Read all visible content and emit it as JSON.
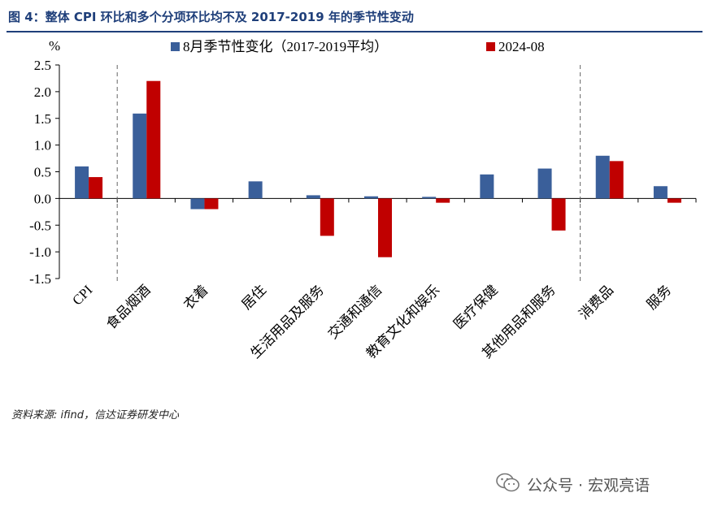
{
  "figure": {
    "title": "图 4：整体 CPI 环比和多个分项环比均不及 2017-2019 年的季节性变动",
    "source": "资料来源: ifind，信达证券研发中心",
    "watermark": "公众号 · 宏观亮语",
    "watermark_icon": "wechat-icon"
  },
  "chart_data": {
    "type": "bar",
    "title": "",
    "xlabel": "",
    "ylabel": "%",
    "ylim": [
      -1.5,
      2.5
    ],
    "yticks": [
      -1.5,
      -1.0,
      -0.5,
      0.0,
      0.5,
      1.0,
      1.5,
      2.0,
      2.5
    ],
    "ytick_labels": [
      "-1.5",
      "-1.0",
      "-0.5",
      "0.0",
      "0.5",
      "1.0",
      "1.5",
      "2.0",
      "2.5"
    ],
    "grid": false,
    "legend_position": "top",
    "categories": [
      "CPI",
      "食品烟酒",
      "衣着",
      "居住",
      "生活用品及服务",
      "交通和通信",
      "教育文化和娱乐",
      "医疗保健",
      "其他用品和服务",
      "消费品",
      "服务"
    ],
    "series": [
      {
        "name": "8月季节性变化（2017-2019平均）",
        "color": "#3a5f9a",
        "values": [
          0.6,
          1.59,
          -0.2,
          0.32,
          0.06,
          0.04,
          0.03,
          0.45,
          0.56,
          0.8,
          0.23
        ]
      },
      {
        "name": "2024-08",
        "color": "#c00000",
        "values": [
          0.4,
          2.2,
          -0.2,
          null,
          -0.7,
          -1.1,
          -0.08,
          null,
          -0.6,
          0.7,
          -0.08
        ]
      }
    ],
    "dividers_after_category_index": [
      0,
      8
    ]
  }
}
